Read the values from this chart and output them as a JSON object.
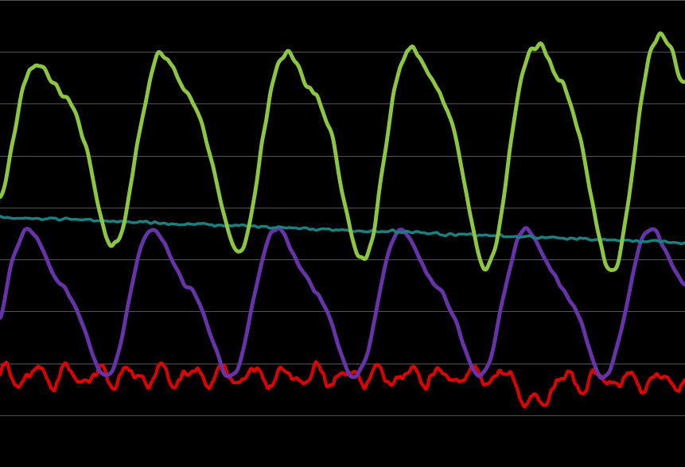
{
  "background_color": "#000000",
  "grid_color": "#555555",
  "figsize": [
    8.61,
    5.87
  ],
  "dpi": 100,
  "green_color": "#8dc63f",
  "teal_color": "#1a8080",
  "purple_color": "#6633aa",
  "red_color": "#dd0000",
  "green_linewidth": 3.5,
  "teal_linewidth": 2.5,
  "purple_linewidth": 3.5,
  "red_linewidth": 3.0,
  "n_gridlines": 10
}
